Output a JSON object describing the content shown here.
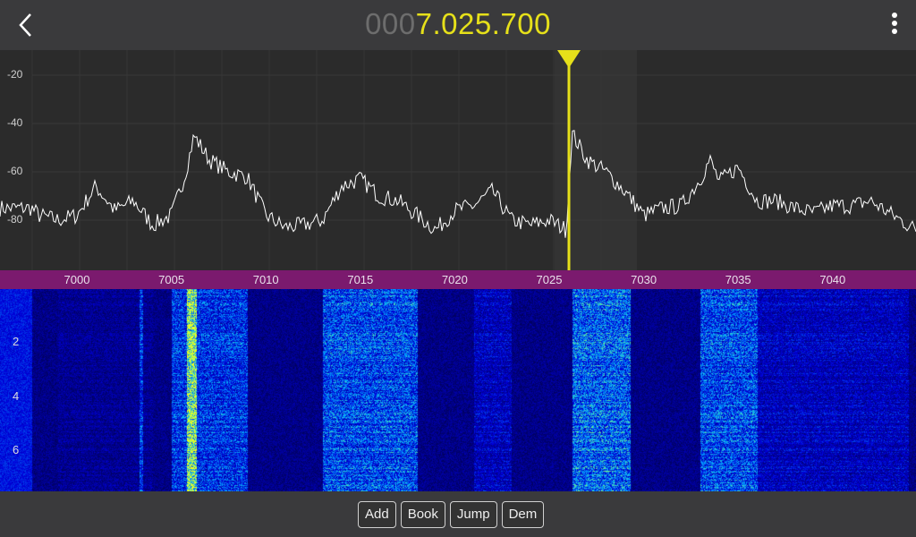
{
  "header": {
    "freq_leading": "000",
    "freq_main": "7.025.700",
    "back_icon": "chevron-left-icon",
    "menu_icon": "more-vertical-icon"
  },
  "colors": {
    "accent": "#e6e01a",
    "axis_bar": "#7b1a6e",
    "background": "#3a3a3c",
    "spectrum_bg": "#2b2b2b"
  },
  "chart_data": {
    "type": "line",
    "xlabel": "",
    "ylabel": "",
    "xlim": [
      6997.6,
      7044.4
    ],
    "ylim": [
      -10,
      -100
    ],
    "y_ticks": [
      "-20",
      "-40",
      "-60",
      "-80"
    ],
    "x_ticks": [
      "7000",
      "7005",
      "7010",
      "7015",
      "7020",
      "7025",
      "7030",
      "7035",
      "7040"
    ],
    "grid": true,
    "cursor_khz": 7025.7,
    "series": [
      {
        "x": [
          6997.6,
          6998,
          6999,
          7000,
          7001,
          7002,
          7003,
          7004,
          7005,
          7005.7,
          7006.2,
          7007,
          7008,
          7009,
          7010,
          7011,
          7012,
          7013,
          7014,
          7015,
          7016,
          7017,
          7018,
          7019,
          7020,
          7021,
          7022,
          7023,
          7024,
          7025,
          7025.9,
          7026.2,
          7027,
          7028,
          7029,
          7030,
          7031,
          7032,
          7033,
          7033.5,
          7034,
          7035,
          7036,
          7037,
          7038,
          7039,
          7040,
          7041,
          7042,
          7043,
          7044,
          7044.4
        ],
        "y": [
          -75,
          -78,
          -80,
          -78,
          -66,
          -76,
          -72,
          -82,
          -78,
          -62,
          -45,
          -55,
          -60,
          -62,
          -78,
          -83,
          -82,
          -80,
          -66,
          -63,
          -70,
          -72,
          -78,
          -84,
          -76,
          -74,
          -68,
          -80,
          -82,
          -80,
          -84,
          -44,
          -55,
          -60,
          -68,
          -78,
          -75,
          -74,
          -63,
          -55,
          -64,
          -58,
          -72,
          -72,
          -75,
          -77,
          -74,
          -74,
          -72,
          -77,
          -82,
          -84
        ]
      }
    ]
  },
  "waterfall": {
    "y_labels": [
      "2",
      "4",
      "6"
    ]
  },
  "toolbar": {
    "add": "Add",
    "book": "Book",
    "jump": "Jump",
    "dem": "Dem"
  }
}
